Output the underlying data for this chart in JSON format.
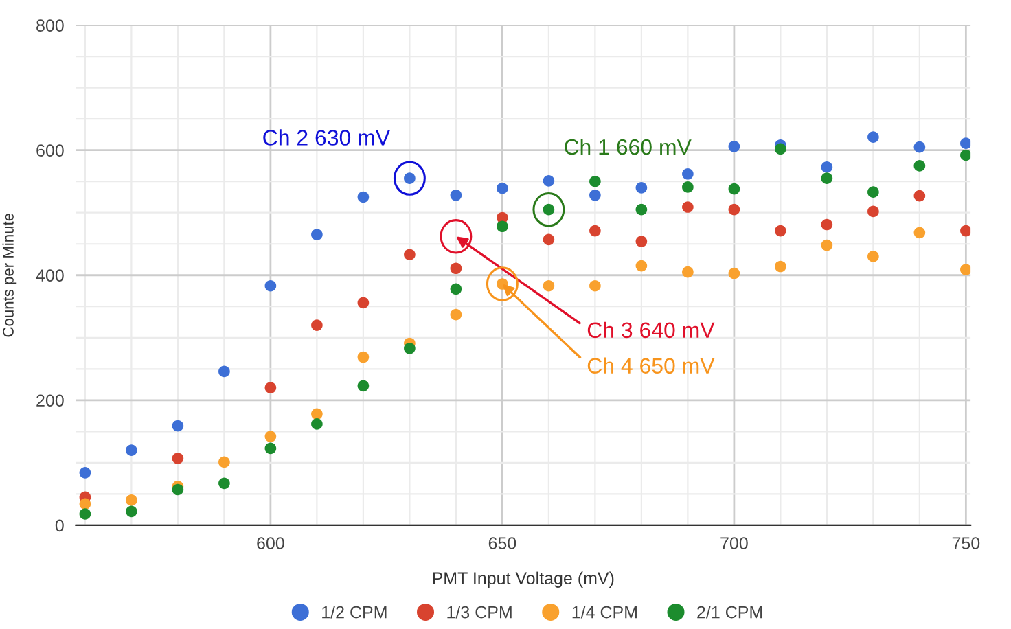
{
  "chart_data": {
    "type": "scatter",
    "xlabel": "PMT Input Voltage (mV)",
    "ylabel": "Counts per Minute",
    "x": [
      560,
      570,
      580,
      590,
      600,
      610,
      620,
      630,
      640,
      650,
      660,
      670,
      680,
      690,
      700,
      710,
      720,
      730,
      740,
      750
    ],
    "series": [
      {
        "name": "1/2 CPM",
        "color": "#3d6fd6",
        "values": [
          84,
          120,
          159,
          246,
          383,
          465,
          525,
          555,
          528,
          539,
          551,
          528,
          540,
          562,
          606,
          608,
          573,
          621,
          605,
          611
        ]
      },
      {
        "name": "1/3 CPM",
        "color": "#d8432f",
        "values": [
          45,
          null,
          107,
          null,
          220,
          320,
          356,
          433,
          411,
          492,
          457,
          471,
          454,
          509,
          505,
          471,
          481,
          502,
          527,
          471
        ]
      },
      {
        "name": "1/4 CPM",
        "color": "#f9a12e",
        "values": [
          34,
          40,
          62,
          101,
          142,
          178,
          269,
          291,
          337,
          386,
          383,
          383,
          415,
          405,
          403,
          414,
          448,
          430,
          468,
          409
        ]
      },
      {
        "name": "2/1 CPM",
        "color": "#1c8c2e",
        "values": [
          18,
          22,
          57,
          67,
          123,
          162,
          223,
          283,
          378,
          478,
          505,
          550,
          505,
          541,
          538,
          602,
          555,
          533,
          575,
          592
        ]
      }
    ],
    "annotations": [
      {
        "text": "Ch 2 630 mV",
        "x": 630,
        "y": 555
      },
      {
        "text": "Ch 1 660 mV",
        "x": 660,
        "y": 505
      },
      {
        "text": "Ch 3 640 mV",
        "x": 640,
        "y": 462
      },
      {
        "text": "Ch 4 650 mV",
        "x": 650,
        "y": 386
      }
    ],
    "xlim": [
      558,
      751
    ],
    "ylim": [
      0,
      800
    ],
    "xticks": [
      600,
      650,
      700,
      750
    ],
    "yticks": [
      0,
      200,
      400,
      600,
      800
    ],
    "grid": true,
    "legend": "bottom",
    "marker": "circle"
  }
}
